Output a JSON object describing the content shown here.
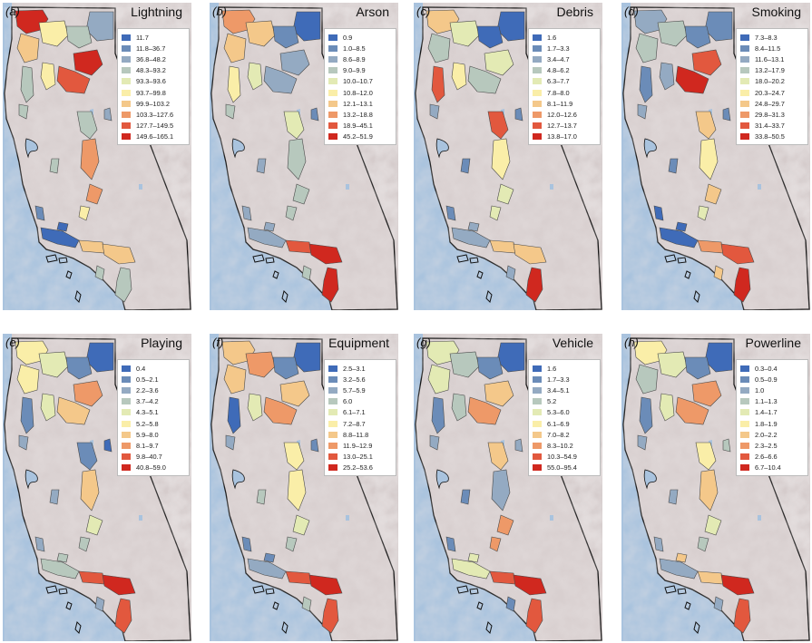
{
  "colors": [
    "#3f6bb8",
    "#6b8cb8",
    "#94aac2",
    "#b7c8bd",
    "#e3eab4",
    "#faeea8",
    "#f4c88a",
    "#ee9968",
    "#e2583e",
    "#d0281f"
  ],
  "panels": [
    {
      "label": "(a)",
      "title": "Lightning",
      "classes": [
        "11.7",
        "11.8–36.7",
        "36.8–48.2",
        "48.3–93.2",
        "93.3–93.6",
        "93.7–99.8",
        "99.9–103.2",
        "103.3–127.6",
        "127.7–149.5",
        "149.6–165.1"
      ],
      "regions": {
        "nw1": 9,
        "nw2": 5,
        "nw3": 6,
        "ne1": 2,
        "ne2": 3,
        "ne3": 9,
        "ne4": 8,
        "w1": 3,
        "w2": 5,
        "w3": 3,
        "c1": 3,
        "s1": 7,
        "s2": 7,
        "s3": 5,
        "c2": 3,
        "coast1": 1,
        "coast2": 0,
        "cc1": 0,
        "sc1": 6,
        "sc2": 6,
        "sc3": 3,
        "se1": 3,
        "nc1": 2
      }
    },
    {
      "label": "(b)",
      "title": "Arson",
      "classes": [
        "0.9",
        "1.0–8.5",
        "8.6–8.9",
        "9.0–9.9",
        "10.0–10.7",
        "10.8–12.0",
        "12.1–13.1",
        "13.2–18.8",
        "18.9–45.1",
        "45.2–51.9"
      ],
      "regions": {
        "nw1": 7,
        "nw2": 6,
        "nw3": 6,
        "ne1": 0,
        "ne2": 1,
        "ne3": 2,
        "ne4": 2,
        "w1": 5,
        "w2": 4,
        "w3": 3,
        "c1": 4,
        "s1": 3,
        "s2": 3,
        "s3": 3,
        "c2": 2,
        "coast1": 2,
        "coast2": 2,
        "cc1": 2,
        "sc1": 8,
        "sc2": 9,
        "sc3": 9,
        "se1": 3,
        "nc1": 1
      }
    },
    {
      "label": "(c)",
      "title": "Debris",
      "classes": [
        "1.6",
        "1.7–3.3",
        "3.4–4.7",
        "4.8–6.2",
        "6.3–7.7",
        "7.8–8.0",
        "8.1–11.9",
        "12.0–12.6",
        "12.7–13.7",
        "13.8–17.0"
      ],
      "regions": {
        "nw1": 6,
        "nw2": 4,
        "nw3": 3,
        "ne1": 0,
        "ne2": 0,
        "ne3": 4,
        "ne4": 3,
        "w1": 8,
        "w2": 5,
        "w3": 2,
        "c1": 8,
        "s1": 5,
        "s2": 4,
        "s3": 4,
        "c2": 1,
        "coast1": 1,
        "coast2": 2,
        "cc1": 2,
        "sc1": 6,
        "sc2": 6,
        "sc3": 9,
        "se1": 2,
        "nc1": 1
      }
    },
    {
      "label": "(d)",
      "title": "Smoking",
      "classes": [
        "7.3–8.3",
        "8.4–11.5",
        "11.6–13.1",
        "13.2–17.9",
        "18.0–20.2",
        "20.3–24.7",
        "24.8–29.7",
        "29.8–31.3",
        "31.4–33.7",
        "33.8–50.5"
      ],
      "regions": {
        "nw1": 2,
        "nw2": 3,
        "nw3": 3,
        "ne1": 1,
        "ne2": 1,
        "ne3": 8,
        "ne4": 9,
        "w1": 1,
        "w2": 2,
        "w3": 2,
        "c1": 6,
        "s1": 5,
        "s2": 6,
        "s3": 4,
        "c2": 1,
        "coast1": 0,
        "coast2": 0,
        "cc1": 0,
        "sc1": 7,
        "sc2": 8,
        "sc3": 9,
        "se1": 6,
        "nc1": 1
      }
    },
    {
      "label": "(e)",
      "title": "Playing",
      "classes": [
        "0.4",
        "0.5–2.1",
        "2.2–3.6",
        "3.7–4.2",
        "4.3–5.1",
        "5.2–5.8",
        "5.9–8.0",
        "8.1–9.7",
        "9.8–40.7",
        "40.8–59.0"
      ],
      "regions": {
        "nw1": 5,
        "nw2": 4,
        "nw3": 5,
        "ne1": 0,
        "ne2": 1,
        "ne3": 7,
        "ne4": 6,
        "w1": 1,
        "w2": 4,
        "w3": 2,
        "c1": 1,
        "s1": 6,
        "s2": 4,
        "s3": 3,
        "c2": 2,
        "coast1": 2,
        "coast2": 3,
        "cc1": 3,
        "sc1": 8,
        "sc2": 9,
        "sc3": 8,
        "se1": 2,
        "nc1": 0
      }
    },
    {
      "label": "(f)",
      "title": "Equipment",
      "classes": [
        "2.5–3.1",
        "3.2–5.6",
        "5.7–5.9",
        "6.0",
        "6.1–7.1",
        "7.2–8.7",
        "8.8–11.8",
        "11.9–12.9",
        "13.0–25.1",
        "25.2–53.6"
      ],
      "regions": {
        "nw1": 6,
        "nw2": 7,
        "nw3": 6,
        "ne1": 0,
        "ne2": 1,
        "ne3": 6,
        "ne4": 7,
        "w1": 0,
        "w2": 4,
        "w3": 2,
        "c1": 5,
        "s1": 5,
        "s2": 4,
        "s3": 3,
        "c2": 3,
        "coast1": 1,
        "coast2": 2,
        "cc1": 1,
        "sc1": 8,
        "sc2": 9,
        "sc3": 8,
        "se1": 3,
        "nc1": 1
      }
    },
    {
      "label": "(g)",
      "title": "Vehicle",
      "classes": [
        "1.6",
        "1.7–3.3",
        "3.4–5.1",
        "5.2",
        "5.3–6.0",
        "6.1–6.9",
        "7.0–8.2",
        "8.3–10.2",
        "10.3–54.9",
        "55.0–95.4"
      ],
      "regions": {
        "nw1": 4,
        "nw2": 3,
        "nw3": 4,
        "ne1": 0,
        "ne2": 1,
        "ne3": 6,
        "ne4": 7,
        "w1": 1,
        "w2": 3,
        "w3": 2,
        "c1": 6,
        "s1": 2,
        "s2": 7,
        "s3": 7,
        "c2": 1,
        "coast1": 1,
        "coast2": 4,
        "cc1": 4,
        "sc1": 8,
        "sc2": 9,
        "sc3": 8,
        "se1": 1,
        "nc1": 2
      }
    },
    {
      "label": "(h)",
      "title": "Powerline",
      "classes": [
        "0.3–0.4",
        "0.5–0.9",
        "1.0",
        "1.1–1.3",
        "1.4–1.7",
        "1.8–1.9",
        "2.0–2.2",
        "2.3–2.5",
        "2.6–6.6",
        "6.7–10.4"
      ],
      "regions": {
        "nw1": 5,
        "nw2": 4,
        "nw3": 3,
        "ne1": 0,
        "ne2": 1,
        "ne3": 7,
        "ne4": 7,
        "w1": 1,
        "w2": 4,
        "w3": 2,
        "c1": 5,
        "s1": 6,
        "s2": 4,
        "s3": 3,
        "c2": 2,
        "coast1": 2,
        "coast2": 2,
        "cc1": 6,
        "sc1": 6,
        "sc2": 9,
        "sc3": 8,
        "se1": 2,
        "nc1": 3
      }
    }
  ]
}
